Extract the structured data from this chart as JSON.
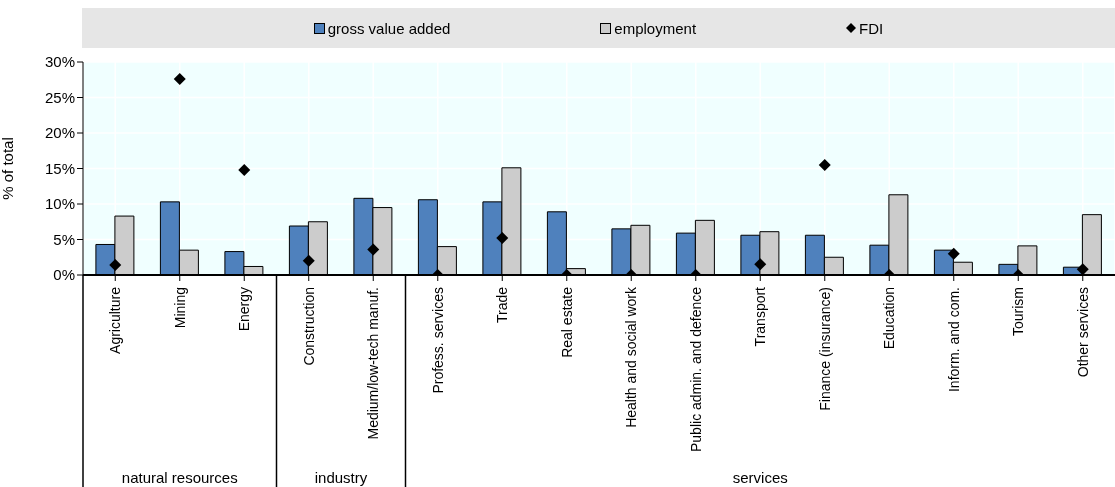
{
  "chart_data": {
    "type": "bar",
    "ylabel": "% of total",
    "categories": [
      "Agriculture",
      "Mining",
      "Energy",
      "Construction",
      "Medium/low-tech manuf.",
      "Profess. services",
      "Trade",
      "Real estate",
      "Health and social work",
      "Public admin. and defence",
      "Transport",
      "Finance (insurance)",
      "Education",
      "Inform. and com.",
      "Tourism",
      "Other services"
    ],
    "series": [
      {
        "name": "gross value added",
        "color": "#4f81bd",
        "values": [
          4.3,
          10.3,
          3.3,
          6.9,
          10.8,
          10.6,
          10.3,
          8.9,
          6.5,
          5.9,
          5.6,
          5.6,
          4.2,
          3.5,
          1.5,
          1.1
        ]
      },
      {
        "name": "employment",
        "color": "#cccccc",
        "values": [
          8.3,
          3.5,
          1.2,
          7.5,
          9.5,
          4.0,
          15.1,
          0.9,
          7.0,
          7.7,
          6.1,
          2.5,
          11.3,
          1.8,
          4.1,
          8.5
        ]
      },
      {
        "name": "FDI",
        "type": "scatter",
        "marker": "diamond",
        "color": "#000000",
        "values": [
          1.4,
          27.6,
          14.8,
          2.0,
          3.6,
          0,
          5.2,
          0,
          0,
          0,
          1.5,
          15.5,
          0,
          3.0,
          0,
          0.8
        ]
      }
    ],
    "ylim": [
      0,
      30
    ],
    "yticks": [
      {
        "value": 0,
        "label": "0%"
      },
      {
        "value": 5,
        "label": "5%"
      },
      {
        "value": 10,
        "label": "10%"
      },
      {
        "value": 15,
        "label": "15%"
      },
      {
        "value": 20,
        "label": "20%"
      },
      {
        "value": 25,
        "label": "25%"
      },
      {
        "value": 30,
        "label": "30%"
      }
    ],
    "grid": true,
    "legend": "top",
    "annotations": [
      "natural resources",
      "industry",
      "services"
    ]
  }
}
